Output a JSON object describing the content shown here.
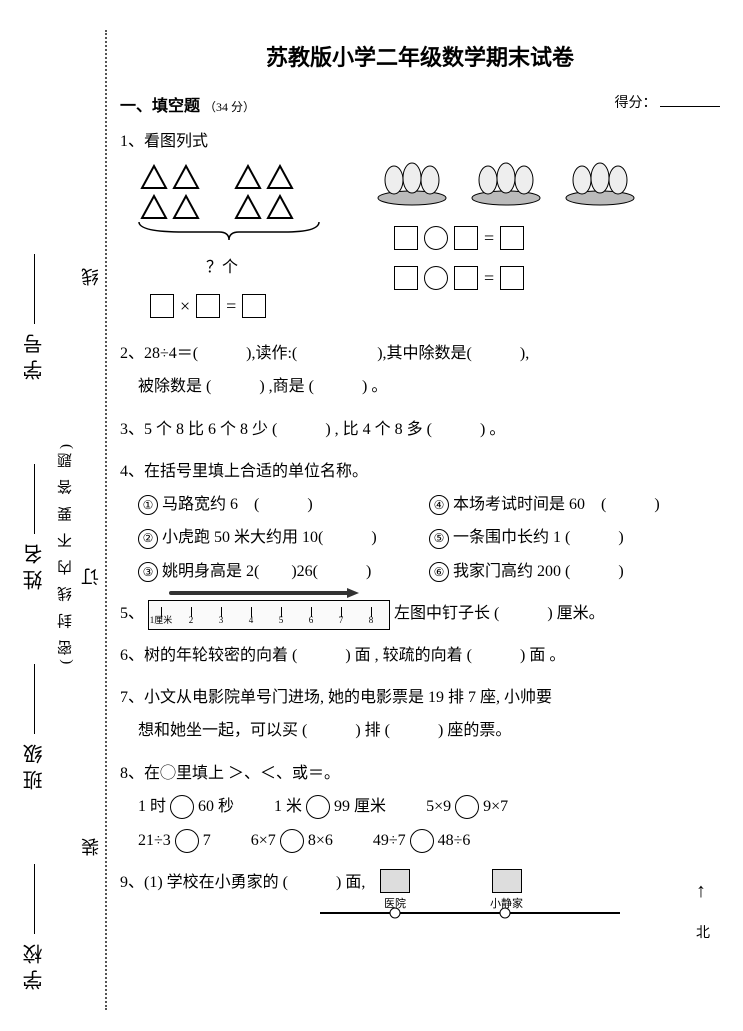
{
  "title": "苏教版小学二年级数学期末试卷",
  "binding": {
    "labels": [
      "学号",
      "姓名",
      "班级",
      "学校"
    ],
    "seal_chars": [
      "线",
      "订",
      "装"
    ],
    "note": "(密 封 线 内 不 要 答 题)"
  },
  "section1": {
    "heading": "一、填空题",
    "points": "（34 分）",
    "score_label": "得分："
  },
  "q1": {
    "label": "1、看图列式",
    "qmark": "？个",
    "eq_left": "×",
    "eq_eq": "="
  },
  "q2": "2、28÷4＝(　　　),读作:(　　　　　),其中除数是(　　　),",
  "q2b": "被除数是 (　　　) ,商是 (　　　) 。",
  "q3": "3、5 个 8 比 6 个 8 少 (　　　) , 比 4 个 8 多 (　　　) 。",
  "q4": {
    "stem": "4、在括号里填上合适的单位名称。",
    "items_left": [
      "马路宽约 6　(　　　)",
      "小虎跑 50 米大约用 10(　　　)",
      "姚明身高是 2(　　)26(　　　)"
    ],
    "items_right": [
      "本场考试时间是 60　(　　　)",
      "一条围巾长约 1 (　　　)",
      "我家门高约 200 (　　　)"
    ],
    "nums_left": [
      "①",
      "②",
      "③"
    ],
    "nums_right": [
      "④",
      "⑤",
      "⑥"
    ]
  },
  "q5": {
    "pre": "5、",
    "post": "左图中钉子长 (　　　) 厘米。",
    "unit_label": "1厘米2",
    "ticks": [
      "1厘米",
      "2",
      "3",
      "4",
      "5",
      "6",
      "7",
      "8"
    ]
  },
  "q6": "6、树的年轮较密的向着 (　　　) 面 , 较疏的向着 (　　　) 面 。",
  "q7a": "7、小文从电影院单号门进场, 她的电影票是 19 排 7 座, 小帅要",
  "q7b": "想和她坐一起，可以买 (　　　) 排 (　　　) 座的票。",
  "q8": {
    "stem": "8、在◯里填上 ＞、＜、或＝。",
    "row1": [
      "1 时",
      "60 秒",
      "1 米",
      "99 厘米",
      "5×9",
      "9×7"
    ],
    "row2": [
      "21÷3",
      "7",
      "6×7",
      "8×6",
      "49÷7",
      "48÷6"
    ]
  },
  "q9": {
    "stem": "9、(1) 学校在小勇家的 (　　　) 面,",
    "labels": {
      "hospital": "医院",
      "jing": "小静家",
      "north": "北"
    }
  }
}
